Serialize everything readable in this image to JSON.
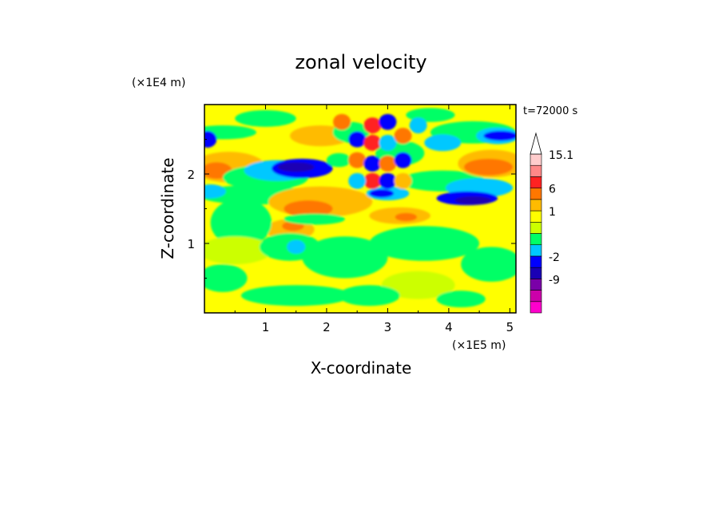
{
  "chart_data": {
    "type": "heatmap",
    "title": "zonal velocity",
    "xlabel": "X-coordinate",
    "ylabel": "Z-coordinate",
    "x_unit": "(×1E5 m)",
    "y_unit": "(×1E4 m)",
    "time_label": "t=72000 s",
    "xlim": [
      0,
      5.1
    ],
    "ylim": [
      0,
      3
    ],
    "x_ticks": [
      {
        "value": 1,
        "label": "1"
      },
      {
        "value": 2,
        "label": "2"
      },
      {
        "value": 3,
        "label": "3"
      },
      {
        "value": 4,
        "label": "4"
      },
      {
        "value": 5,
        "label": "5"
      }
    ],
    "y_ticks": [
      {
        "value": 1,
        "label": "1"
      },
      {
        "value": 2,
        "label": "2"
      }
    ],
    "colorbar": {
      "levels": [
        {
          "color": "#ff00cc"
        },
        {
          "color": "#cc00aa"
        },
        {
          "color": "#7a00a8",
          "label": "-9"
        },
        {
          "color": "#1a00b4"
        },
        {
          "color": "#0000ff",
          "label": "-2"
        },
        {
          "color": "#00c8ff"
        },
        {
          "color": "#00ff66"
        },
        {
          "color": "#ccff00"
        },
        {
          "color": "#ffff00",
          "label": "1"
        },
        {
          "color": "#ffbb00"
        },
        {
          "color": "#ff7700",
          "label": "6"
        },
        {
          "color": "#ff2222"
        },
        {
          "color": "#ff8888"
        },
        {
          "color": "#ffcccc",
          "label": "15.1"
        }
      ]
    },
    "field": {
      "background_color": "#ffff00",
      "blobs": [
        {
          "x": 0.3,
          "z": 2.6,
          "rx": 0.55,
          "rz": 0.1,
          "color": "#00ff66"
        },
        {
          "x": 0.05,
          "z": 2.5,
          "rx": 0.15,
          "rz": 0.12,
          "color": "#0000ff"
        },
        {
          "x": 0.4,
          "z": 2.1,
          "rx": 0.6,
          "rz": 0.22,
          "color": "#ffbb00"
        },
        {
          "x": 0.2,
          "z": 2.05,
          "rx": 0.25,
          "rz": 0.12,
          "color": "#ff7700"
        },
        {
          "x": 1.0,
          "z": 1.95,
          "rx": 0.7,
          "rz": 0.18,
          "color": "#00ff66"
        },
        {
          "x": 1.2,
          "z": 2.05,
          "rx": 0.55,
          "rz": 0.15,
          "color": "#00c8ff"
        },
        {
          "x": 1.6,
          "z": 2.08,
          "rx": 0.5,
          "rz": 0.14,
          "color": "#0000ff"
        },
        {
          "x": 1.5,
          "z": 2.1,
          "rx": 0.3,
          "rz": 0.07,
          "color": "#1a00b4"
        },
        {
          "x": 0.8,
          "z": 1.7,
          "rx": 0.9,
          "rz": 0.14,
          "color": "#00ff66"
        },
        {
          "x": 0.1,
          "z": 1.75,
          "rx": 0.25,
          "rz": 0.1,
          "color": "#00c8ff"
        },
        {
          "x": 1.9,
          "z": 1.6,
          "rx": 0.85,
          "rz": 0.22,
          "color": "#ffbb00"
        },
        {
          "x": 1.7,
          "z": 1.5,
          "rx": 0.4,
          "rz": 0.12,
          "color": "#ff7700"
        },
        {
          "x": 1.4,
          "z": 1.2,
          "rx": 0.4,
          "rz": 0.15,
          "color": "#ffbb00"
        },
        {
          "x": 1.45,
          "z": 1.25,
          "rx": 0.18,
          "rz": 0.07,
          "color": "#ff7700"
        },
        {
          "x": 1.8,
          "z": 1.35,
          "rx": 0.5,
          "rz": 0.08,
          "color": "#00ff66"
        },
        {
          "x": 0.6,
          "z": 1.3,
          "rx": 0.5,
          "rz": 0.35,
          "color": "#00ff66"
        },
        {
          "x": 0.5,
          "z": 0.9,
          "rx": 0.6,
          "rz": 0.2,
          "color": "#ccff00"
        },
        {
          "x": 1.4,
          "z": 0.95,
          "rx": 0.5,
          "rz": 0.2,
          "color": "#00ff66"
        },
        {
          "x": 1.5,
          "z": 0.95,
          "rx": 0.15,
          "rz": 0.1,
          "color": "#00c8ff"
        },
        {
          "x": 2.3,
          "z": 0.8,
          "rx": 0.7,
          "rz": 0.3,
          "color": "#00ff66"
        },
        {
          "x": 0.3,
          "z": 0.5,
          "rx": 0.4,
          "rz": 0.2,
          "color": "#00ff66"
        },
        {
          "x": 1.5,
          "z": 0.25,
          "rx": 0.9,
          "rz": 0.15,
          "color": "#00ff66"
        },
        {
          "x": 3.6,
          "z": 1.0,
          "rx": 0.9,
          "rz": 0.25,
          "color": "#00ff66"
        },
        {
          "x": 4.7,
          "z": 0.7,
          "rx": 0.5,
          "rz": 0.25,
          "color": "#00ff66"
        },
        {
          "x": 3.5,
          "z": 0.4,
          "rx": 0.6,
          "rz": 0.2,
          "color": "#ccff00"
        },
        {
          "x": 2.7,
          "z": 0.25,
          "rx": 0.5,
          "rz": 0.15,
          "color": "#00ff66"
        },
        {
          "x": 4.2,
          "z": 0.2,
          "rx": 0.4,
          "rz": 0.12,
          "color": "#00ff66"
        },
        {
          "x": 3.2,
          "z": 1.4,
          "rx": 0.5,
          "rz": 0.12,
          "color": "#ffbb00"
        },
        {
          "x": 3.3,
          "z": 1.38,
          "rx": 0.18,
          "rz": 0.06,
          "color": "#ff7700"
        },
        {
          "x": 3.0,
          "z": 1.72,
          "rx": 0.35,
          "rz": 0.1,
          "color": "#00c8ff"
        },
        {
          "x": 2.9,
          "z": 1.72,
          "rx": 0.2,
          "rz": 0.06,
          "color": "#0000ff"
        },
        {
          "x": 3.9,
          "z": 1.9,
          "rx": 0.7,
          "rz": 0.15,
          "color": "#00ff66"
        },
        {
          "x": 4.5,
          "z": 1.8,
          "rx": 0.55,
          "rz": 0.14,
          "color": "#00c8ff"
        },
        {
          "x": 4.3,
          "z": 1.65,
          "rx": 0.5,
          "rz": 0.1,
          "color": "#0000ff"
        },
        {
          "x": 4.4,
          "z": 1.62,
          "rx": 0.3,
          "rz": 0.06,
          "color": "#1a00b4"
        },
        {
          "x": 4.7,
          "z": 2.15,
          "rx": 0.55,
          "rz": 0.2,
          "color": "#ffbb00"
        },
        {
          "x": 4.65,
          "z": 2.1,
          "rx": 0.4,
          "rz": 0.12,
          "color": "#ff7700"
        },
        {
          "x": 3.2,
          "z": 2.3,
          "rx": 0.4,
          "rz": 0.18,
          "color": "#00ff66"
        },
        {
          "x": 4.4,
          "z": 2.6,
          "rx": 0.7,
          "rz": 0.16,
          "color": "#00ff66"
        },
        {
          "x": 4.8,
          "z": 2.55,
          "rx": 0.35,
          "rz": 0.12,
          "color": "#00c8ff"
        },
        {
          "x": 4.85,
          "z": 2.55,
          "rx": 0.28,
          "rz": 0.07,
          "color": "#0000ff"
        },
        {
          "x": 1.9,
          "z": 2.55,
          "rx": 0.5,
          "rz": 0.15,
          "color": "#ffbb00"
        },
        {
          "x": 2.4,
          "z": 2.6,
          "rx": 0.3,
          "rz": 0.15,
          "color": "#00ff66"
        },
        {
          "x": 2.2,
          "z": 2.2,
          "rx": 0.2,
          "rz": 0.1,
          "color": "#00ff66"
        },
        {
          "x": 3.9,
          "z": 2.45,
          "rx": 0.3,
          "rz": 0.12,
          "color": "#00c8ff"
        },
        {
          "x": 3.7,
          "z": 2.85,
          "rx": 0.4,
          "rz": 0.1,
          "color": "#00ff66"
        },
        {
          "x": 1.0,
          "z": 2.8,
          "rx": 0.5,
          "rz": 0.12,
          "color": "#00ff66"
        }
      ],
      "checker_cells": [
        {
          "x": 2.75,
          "z": 2.7,
          "color": "#ff2222"
        },
        {
          "x": 3.0,
          "z": 2.75,
          "color": "#0000ff"
        },
        {
          "x": 2.5,
          "z": 2.5,
          "color": "#0000ff"
        },
        {
          "x": 2.75,
          "z": 2.45,
          "color": "#ff2222"
        },
        {
          "x": 3.0,
          "z": 2.45,
          "color": "#00c8ff"
        },
        {
          "x": 3.25,
          "z": 2.55,
          "color": "#ff7700"
        },
        {
          "x": 2.5,
          "z": 2.2,
          "color": "#ff7700"
        },
        {
          "x": 2.75,
          "z": 2.15,
          "color": "#0000ff"
        },
        {
          "x": 3.0,
          "z": 2.15,
          "color": "#ff7700"
        },
        {
          "x": 3.25,
          "z": 2.2,
          "color": "#0000ff"
        },
        {
          "x": 2.75,
          "z": 1.9,
          "color": "#ff2222"
        },
        {
          "x": 3.0,
          "z": 1.9,
          "color": "#0000ff"
        },
        {
          "x": 2.5,
          "z": 1.9,
          "color": "#00c8ff"
        },
        {
          "x": 3.25,
          "z": 1.9,
          "color": "#ffbb00"
        },
        {
          "x": 2.25,
          "z": 2.75,
          "color": "#ff7700"
        },
        {
          "x": 3.5,
          "z": 2.7,
          "color": "#00c8ff"
        }
      ]
    }
  }
}
